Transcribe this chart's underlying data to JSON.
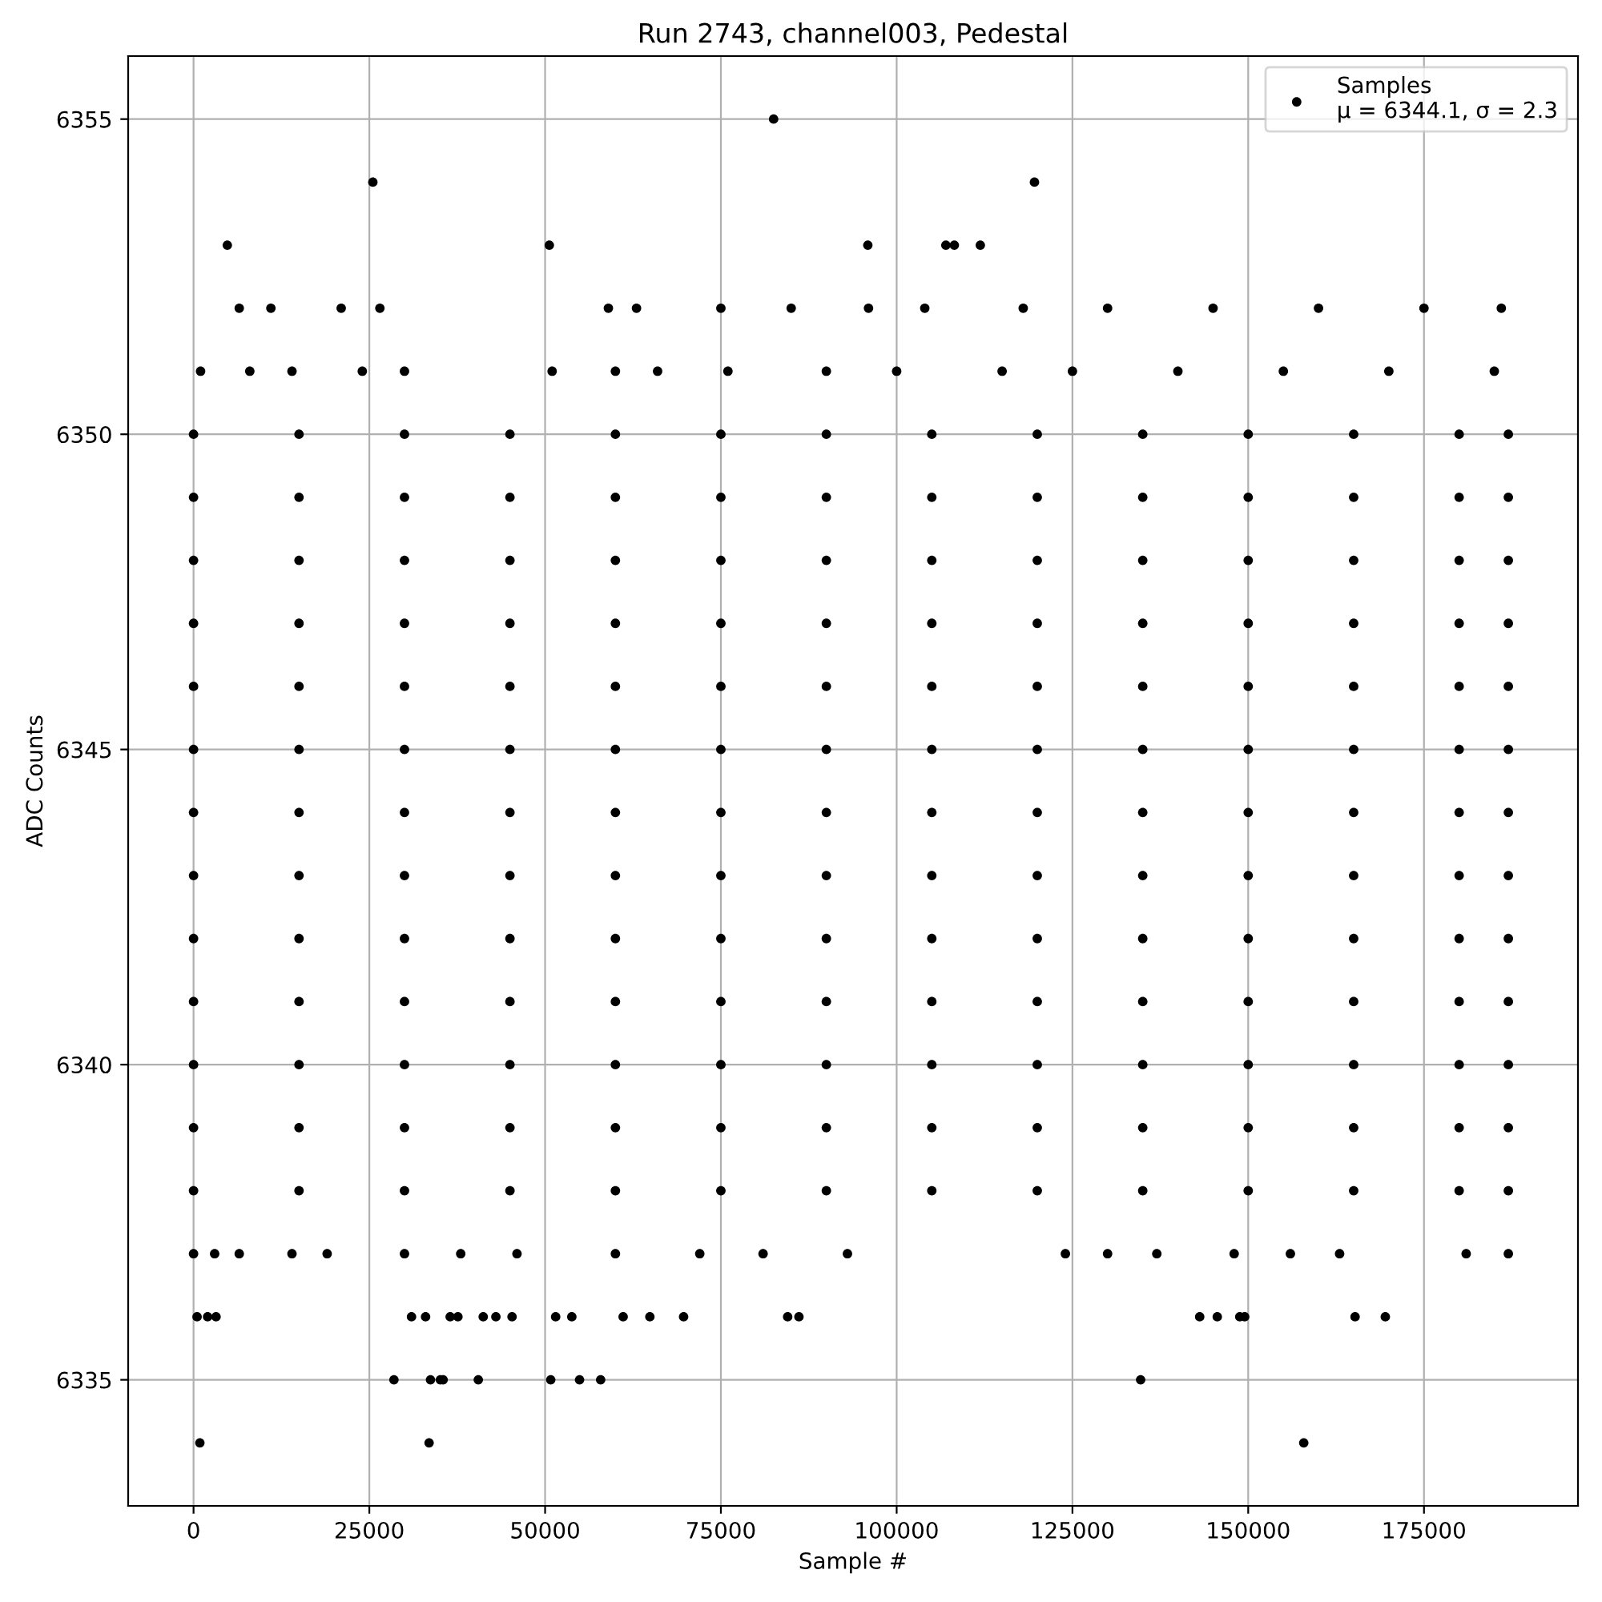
{
  "chart_data": {
    "type": "scatter",
    "title": "Run 2743, channel003, Pedestal",
    "xlabel": "Sample #",
    "ylabel": "ADC Counts",
    "xlim": [
      -9300,
      196900
    ],
    "ylim": [
      6333,
      6356
    ],
    "xticks": [
      0,
      25000,
      50000,
      75000,
      100000,
      125000,
      150000,
      175000
    ],
    "yticks": [
      6335,
      6340,
      6345,
      6350,
      6355
    ],
    "grid": true,
    "legend": "top right",
    "marker": "circle",
    "series": [
      {
        "name": "Samples\nμ = 6344.1, σ = 2.3",
        "color": "#000000",
        "x": [
          0,
          15000,
          30000,
          45000,
          60000,
          75000,
          90000,
          105000,
          120000,
          135000,
          150000,
          165000,
          180000,
          187000,
          0,
          15000,
          30000,
          45000,
          60000,
          75000,
          90000,
          105000,
          120000,
          135000,
          150000,
          165000,
          180000,
          187000,
          0,
          15000,
          30000,
          45000,
          60000,
          75000,
          90000,
          105000,
          120000,
          135000,
          150000,
          165000,
          180000,
          187000,
          0,
          15000,
          30000,
          45000,
          60000,
          75000,
          90000,
          105000,
          120000,
          135000,
          150000,
          165000,
          180000,
          187000,
          0,
          15000,
          30000,
          45000,
          60000,
          75000,
          90000,
          105000,
          120000,
          135000,
          150000,
          165000,
          180000,
          187000,
          0,
          15000,
          30000,
          45000,
          60000,
          75000,
          90000,
          105000,
          120000,
          135000,
          150000,
          165000,
          180000,
          187000,
          0,
          15000,
          30000,
          45000,
          60000,
          75000,
          90000,
          105000,
          120000,
          135000,
          150000,
          165000,
          180000,
          187000,
          0,
          15000,
          30000,
          45000,
          60000,
          75000,
          90000,
          105000,
          120000,
          135000,
          150000,
          165000,
          180000,
          187000,
          0,
          15000,
          30000,
          45000,
          60000,
          75000,
          90000,
          105000,
          120000,
          135000,
          150000,
          165000,
          180000,
          187000,
          0,
          15000,
          30000,
          45000,
          60000,
          75000,
          90000,
          105000,
          120000,
          135000,
          150000,
          165000,
          180000,
          187000,
          0,
          15000,
          30000,
          45000,
          60000,
          75000,
          90000,
          105000,
          120000,
          135000,
          150000,
          165000,
          180000,
          187000,
          0,
          15000,
          30000,
          45000,
          60000,
          75000,
          90000,
          105000,
          120000,
          135000,
          150000,
          165000,
          180000,
          187000,
          0,
          15000,
          30000,
          45000,
          60000,
          75000,
          90000,
          105000,
          120000,
          135000,
          150000,
          165000,
          180000,
          187000,
          0,
          3000,
          6500,
          14000,
          19000,
          30000,
          38000,
          46000,
          60000,
          72000,
          81000,
          93000,
          124000,
          130000,
          137000,
          148000,
          156000,
          163000,
          181000,
          187000,
          1000,
          8000,
          14000,
          24000,
          30000,
          51000,
          60000,
          66000,
          76000,
          90000,
          100000,
          115000,
          125000,
          140000,
          155000,
          170000,
          185000,
          6500,
          11000,
          21000,
          26500,
          59000,
          63000,
          75000,
          85000,
          96000,
          104000,
          118000,
          130000,
          145000,
          160000,
          175000,
          186000,
          500,
          2000,
          3200,
          31000,
          33000,
          36500,
          37600,
          41200,
          43000,
          45300,
          51500,
          53800,
          61100,
          64900,
          69700,
          84500,
          86100,
          143100,
          145600,
          148800,
          149500,
          165200,
          169500,
          28500,
          33700,
          35100,
          35500,
          40500,
          50800,
          54900,
          57900,
          134700,
          900,
          33500,
          157900,
          4800,
          50600,
          95900,
          107000,
          108200,
          111900,
          25500,
          119600,
          82500
        ],
        "values": [
          6338,
          6338,
          6338,
          6338,
          6338,
          6338,
          6338,
          6338,
          6338,
          6338,
          6338,
          6338,
          6338,
          6338,
          6339,
          6339,
          6339,
          6339,
          6339,
          6339,
          6339,
          6339,
          6339,
          6339,
          6339,
          6339,
          6339,
          6339,
          6340,
          6340,
          6340,
          6340,
          6340,
          6340,
          6340,
          6340,
          6340,
          6340,
          6340,
          6340,
          6340,
          6340,
          6341,
          6341,
          6341,
          6341,
          6341,
          6341,
          6341,
          6341,
          6341,
          6341,
          6341,
          6341,
          6341,
          6341,
          6342,
          6342,
          6342,
          6342,
          6342,
          6342,
          6342,
          6342,
          6342,
          6342,
          6342,
          6342,
          6342,
          6342,
          6343,
          6343,
          6343,
          6343,
          6343,
          6343,
          6343,
          6343,
          6343,
          6343,
          6343,
          6343,
          6343,
          6343,
          6344,
          6344,
          6344,
          6344,
          6344,
          6344,
          6344,
          6344,
          6344,
          6344,
          6344,
          6344,
          6344,
          6344,
          6345,
          6345,
          6345,
          6345,
          6345,
          6345,
          6345,
          6345,
          6345,
          6345,
          6345,
          6345,
          6345,
          6345,
          6346,
          6346,
          6346,
          6346,
          6346,
          6346,
          6346,
          6346,
          6346,
          6346,
          6346,
          6346,
          6346,
          6346,
          6347,
          6347,
          6347,
          6347,
          6347,
          6347,
          6347,
          6347,
          6347,
          6347,
          6347,
          6347,
          6347,
          6347,
          6348,
          6348,
          6348,
          6348,
          6348,
          6348,
          6348,
          6348,
          6348,
          6348,
          6348,
          6348,
          6348,
          6348,
          6349,
          6349,
          6349,
          6349,
          6349,
          6349,
          6349,
          6349,
          6349,
          6349,
          6349,
          6349,
          6349,
          6349,
          6350,
          6350,
          6350,
          6350,
          6350,
          6350,
          6350,
          6350,
          6350,
          6350,
          6350,
          6350,
          6350,
          6350,
          6337,
          6337,
          6337,
          6337,
          6337,
          6337,
          6337,
          6337,
          6337,
          6337,
          6337,
          6337,
          6337,
          6337,
          6337,
          6337,
          6337,
          6337,
          6337,
          6337,
          6351,
          6351,
          6351,
          6351,
          6351,
          6351,
          6351,
          6351,
          6351,
          6351,
          6351,
          6351,
          6351,
          6351,
          6351,
          6351,
          6351,
          6352,
          6352,
          6352,
          6352,
          6352,
          6352,
          6352,
          6352,
          6352,
          6352,
          6352,
          6352,
          6352,
          6352,
          6352,
          6352,
          6336,
          6336,
          6336,
          6336,
          6336,
          6336,
          6336,
          6336,
          6336,
          6336,
          6336,
          6336,
          6336,
          6336,
          6336,
          6336,
          6336,
          6336,
          6336,
          6336,
          6336,
          6336,
          6336,
          6335,
          6335,
          6335,
          6335,
          6335,
          6335,
          6335,
          6335,
          6335,
          6334,
          6334,
          6334,
          6353,
          6353,
          6353,
          6353,
          6353,
          6353,
          6354,
          6354,
          6355
        ]
      }
    ]
  }
}
